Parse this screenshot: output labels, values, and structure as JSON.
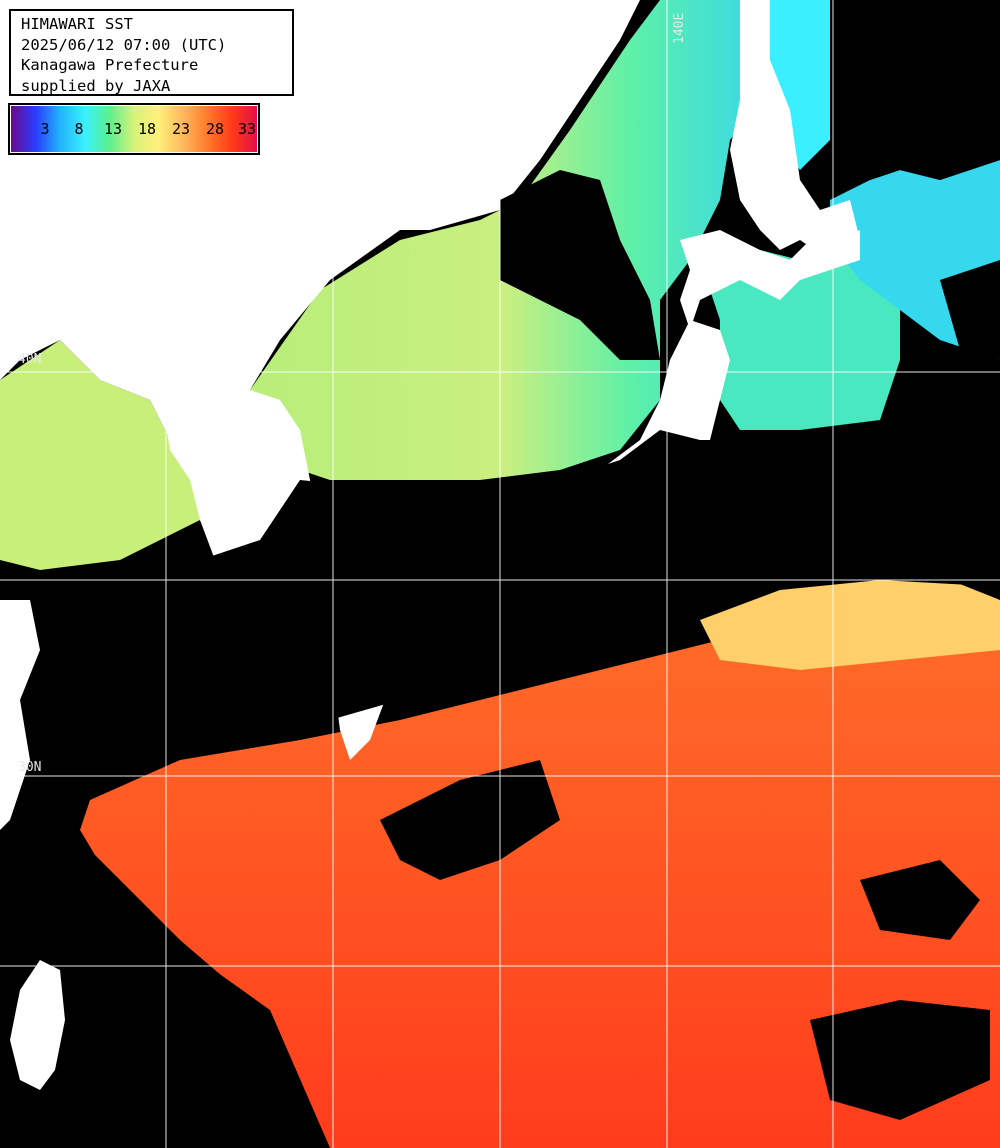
{
  "info": {
    "line1": "HIMAWARI SST",
    "line2": "2025/06/12 07:00 (UTC)",
    "line3": "Kanagawa Prefecture",
    "line4": "supplied by JAXA"
  },
  "colorbar": {
    "ticks": [
      "3",
      "8",
      "13",
      "18",
      "23",
      "28",
      "33"
    ],
    "min": 0,
    "max": 33,
    "colors": [
      "#6a0a8c",
      "#2a3cff",
      "#21b4ff",
      "#3af0ff",
      "#5cf08c",
      "#d8f27a",
      "#fff07a",
      "#ffb85a",
      "#ff7a2a",
      "#ff3a18",
      "#e0104a"
    ]
  },
  "grid_labels": {
    "lon_140": "140E",
    "lat_40": "40N",
    "lat_30": "30N"
  },
  "colors": {
    "land": "#ffffff",
    "cloud": "#000000",
    "grid": "#ffffff"
  }
}
